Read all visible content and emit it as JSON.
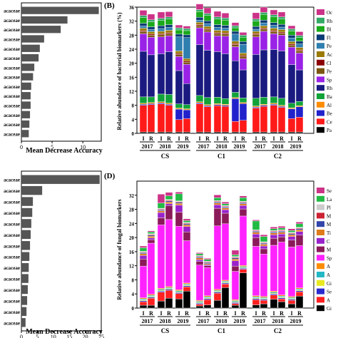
{
  "panel_letters": [
    "(B)",
    "(D)"
  ],
  "chart_data": [
    {
      "type": "bar",
      "orientation": "horizontal",
      "xlabel": "Mean Decrease Accuracy",
      "xlim": [
        0,
        13
      ],
      "xticks": [
        "0",
        "5",
        "10"
      ],
      "categories": [
        "acaceae",
        "acaceae",
        "acaceae",
        "acaceae",
        "acaceae",
        "acaceae",
        "acaceae",
        "acaceae",
        "acaceae",
        "acaceae",
        "acaceae",
        "acaceae",
        "acaceae",
        "acaceae"
      ],
      "values": [
        12.6,
        7.5,
        6.4,
        3.7,
        3.0,
        2.8,
        2.1,
        1.9,
        1.6,
        1.5,
        1.5,
        1.4,
        1.3,
        1.2
      ]
    },
    {
      "type": "bar",
      "orientation": "horizontal",
      "xlabel": "Mean Decrease Accuracy",
      "xlim": [
        0,
        25
      ],
      "xticks": [
        "0",
        "5",
        "10",
        "15",
        "20",
        "25"
      ],
      "categories": [
        "acaceae",
        "acaceae",
        "acaceae",
        "acaceae",
        "acaceae",
        "acaceae",
        "acaceae",
        "acaceae",
        "acaceae",
        "acaceae",
        "acaceae",
        "acaceae",
        "acaceae",
        "acaceae"
      ],
      "values": [
        24.5,
        6.5,
        3.6,
        3.4,
        3.1,
        2.9,
        2.7,
        2.5,
        2.3,
        2.2,
        2.0,
        1.8,
        1.6,
        1.3
      ]
    },
    {
      "type": "stacked-bar",
      "panel": "(B)",
      "ylabel": "Relative abundance of bacterial biomarkers (%)",
      "ylim": [
        0,
        36
      ],
      "yticks": [
        "0",
        "4",
        "8",
        "12",
        "16",
        "20",
        "24",
        "28",
        "32",
        "36"
      ],
      "categories": [
        "I",
        "R",
        "I",
        "R",
        "I",
        "R",
        "I",
        "R",
        "I",
        "R",
        "I",
        "R",
        "I",
        "R",
        "I",
        "R",
        "I",
        "R"
      ],
      "years": [
        "2017",
        "2018",
        "2019",
        "2017",
        "2018",
        "2019",
        "2017",
        "2018",
        "2019"
      ],
      "groups": [
        "CS",
        "C1",
        "C2"
      ],
      "legend": [
        "Oc",
        "Rh",
        "Bl",
        "Fl",
        "Pe",
        "Ac",
        "Cl",
        "Pe",
        "Sp",
        "Rh",
        "Ba",
        "Al",
        "Be",
        "Ce",
        "Pa"
      ],
      "colors": [
        "#000000",
        "#ff1a1a",
        "#2222cc",
        "#ff8c00",
        "#11a33a",
        "#1a1a80",
        "#9a22e6",
        "#7a5510",
        "#8b0000",
        "#9b7a00",
        "#2f7fb0",
        "#0b3b75",
        "#1aaa1a",
        "#33aa66",
        "#cc3388"
      ],
      "series": [
        {
          "values": [
            0.4,
            0.4,
            0.4,
            0.4,
            0.4,
            0.4,
            0.4,
            0.4,
            0.4,
            0.4,
            0.4,
            0.4,
            0.4,
            0.4,
            0.4,
            0.4,
            0.4,
            0.4
          ]
        },
        {
          "values": [
            7.6,
            7.8,
            8.0,
            7.6,
            3.5,
            3.8,
            8.0,
            7.2,
            7.5,
            7.3,
            3.0,
            3.3,
            6.8,
            7.3,
            7.6,
            7.0,
            3.8,
            4.2
          ]
        },
        {
          "values": [
            0.3,
            0.3,
            0.3,
            0.3,
            3.0,
            2.5,
            0.3,
            0.3,
            0.3,
            0.3,
            6.5,
            4.8,
            0.3,
            0.3,
            0.3,
            0.3,
            2.8,
            3.0
          ]
        },
        {
          "values": [
            0.3,
            0.3,
            0.3,
            0.3,
            0.3,
            0.3,
            0.3,
            0.3,
            0.3,
            0.3,
            0.3,
            0.3,
            0.3,
            0.3,
            0.3,
            0.3,
            0.3,
            0.3
          ]
        },
        {
          "values": [
            1.8,
            1.6,
            2.2,
            2.5,
            1.2,
            1.2,
            1.8,
            2.0,
            1.8,
            1.6,
            1.5,
            1.3,
            2.2,
            2.0,
            1.8,
            2.0,
            1.3,
            1.2
          ]
        },
        {
          "values": [
            13.0,
            12.0,
            11.5,
            12.2,
            9.5,
            6.0,
            14.5,
            13.5,
            13.0,
            12.8,
            9.0,
            8.0,
            12.5,
            13.5,
            13.5,
            13.5,
            11.0,
            9.0
          ]
        },
        {
          "values": [
            5.0,
            5.0,
            4.8,
            4.5,
            4.0,
            5.5,
            4.8,
            5.2,
            4.5,
            5.0,
            4.0,
            3.2,
            5.0,
            5.3,
            4.5,
            4.5,
            5.0,
            4.8
          ]
        },
        {
          "values": [
            0.6,
            0.6,
            0.6,
            0.6,
            0.6,
            0.6,
            0.6,
            0.6,
            0.6,
            0.6,
            0.6,
            0.6,
            0.6,
            0.6,
            0.6,
            0.6,
            0.6,
            0.6
          ]
        },
        {
          "values": [
            0.3,
            0.3,
            0.3,
            0.3,
            0.3,
            0.3,
            0.3,
            0.3,
            0.3,
            0.3,
            0.3,
            0.3,
            0.3,
            0.3,
            0.3,
            0.3,
            0.3,
            0.3
          ]
        },
        {
          "values": [
            0.7,
            0.7,
            0.7,
            0.7,
            0.7,
            0.7,
            0.7,
            0.7,
            0.7,
            0.7,
            0.7,
            0.7,
            0.7,
            0.7,
            0.7,
            0.7,
            0.7,
            0.7
          ]
        },
        {
          "values": [
            0.6,
            0.6,
            0.8,
            0.8,
            4.0,
            6.0,
            0.6,
            0.8,
            0.8,
            0.7,
            2.0,
            2.5,
            0.6,
            0.8,
            0.8,
            0.7,
            1.0,
            1.0
          ]
        },
        {
          "values": [
            0.8,
            0.8,
            0.8,
            0.8,
            0.8,
            0.8,
            0.8,
            0.8,
            0.8,
            0.8,
            0.8,
            0.8,
            0.8,
            0.8,
            0.8,
            0.8,
            0.8,
            0.8
          ]
        },
        {
          "values": [
            1.6,
            1.4,
            1.5,
            1.6,
            1.2,
            1.2,
            1.6,
            1.5,
            1.6,
            1.5,
            1.0,
            1.2,
            1.5,
            1.6,
            1.6,
            1.5,
            1.2,
            1.0
          ]
        },
        {
          "values": [
            0.6,
            0.6,
            0.6,
            0.6,
            0.6,
            0.6,
            0.6,
            0.6,
            0.6,
            0.6,
            0.6,
            0.6,
            0.6,
            0.6,
            0.6,
            0.6,
            0.6,
            0.6
          ]
        },
        {
          "values": [
            1.5,
            1.6,
            1.8,
            1.5,
            0.8,
            0.7,
            1.6,
            1.6,
            1.6,
            1.4,
            0.9,
            0.8,
            1.8,
            1.5,
            1.4,
            1.4,
            0.9,
            1.1
          ]
        }
      ]
    },
    {
      "type": "stacked-bar",
      "panel": "(D)",
      "ylabel": "Relative abundance of fungal biomarkers",
      "ylim": [
        0,
        36
      ],
      "yticks": [
        "0",
        "4",
        "8",
        "12",
        "16",
        "20",
        "24",
        "28",
        "32"
      ],
      "categories": [
        "I",
        "R",
        "I",
        "R",
        "I",
        "R",
        "I",
        "R",
        "I",
        "R",
        "I",
        "R",
        "I",
        "R",
        "I",
        "R",
        "I",
        "R"
      ],
      "years": [
        "2017",
        "2018",
        "2019",
        "2017",
        "2018",
        "2019",
        "2017",
        "2018",
        "2019"
      ],
      "groups": [
        "CS",
        "C1",
        "C2"
      ],
      "legend": [
        "Se",
        "La",
        "Pl",
        "M",
        "M",
        "Ti",
        "C",
        "M",
        "Sp",
        "A",
        "A",
        "Gi",
        "Se",
        "A",
        "Gi"
      ],
      "colors": [
        "#000000",
        "#ff2020",
        "#2a2ad0",
        "#e8e820",
        "#23b8c4",
        "#ff8c00",
        "#ff22ff",
        "#8b1a5a",
        "#9922cc",
        "#e07b1a",
        "#3344aa",
        "#cc2233",
        "#cccccc",
        "#22bb44",
        "#cc3388"
      ],
      "series": [
        {
          "values": [
            0.8,
            0.8,
            2.0,
            2.8,
            2.6,
            4.8,
            0.6,
            0.9,
            2.2,
            5.8,
            0.8,
            10.0,
            0.9,
            1.2,
            2.5,
            1.8,
            1.2,
            3.4
          ]
        },
        {
          "values": [
            1.0,
            2.0,
            2.5,
            2.2,
            1.5,
            1.2,
            0.5,
            1.5,
            2.0,
            1.0,
            0.5,
            1.0,
            1.5,
            1.0,
            1.2,
            0.8,
            1.0,
            1.2
          ]
        },
        {
          "values": [
            0.3,
            0.3,
            0.3,
            0.3,
            0.3,
            0.3,
            0.3,
            0.3,
            0.3,
            0.3,
            0.3,
            0.3,
            0.3,
            0.3,
            0.3,
            0.3,
            0.3,
            0.3
          ]
        },
        {
          "values": [
            0.2,
            0.2,
            0.2,
            0.2,
            0.2,
            0.2,
            0.2,
            0.2,
            0.2,
            0.2,
            0.2,
            0.2,
            0.2,
            0.2,
            0.2,
            0.2,
            0.2,
            0.2
          ]
        },
        {
          "values": [
            0.3,
            0.3,
            0.3,
            0.3,
            0.3,
            0.3,
            0.3,
            0.3,
            0.3,
            0.3,
            0.3,
            0.3,
            0.3,
            0.3,
            0.3,
            0.3,
            0.3,
            0.3
          ]
        },
        {
          "values": [
            0.3,
            0.3,
            0.3,
            0.3,
            0.3,
            0.3,
            0.3,
            0.3,
            0.3,
            0.3,
            0.3,
            0.3,
            0.3,
            0.3,
            0.3,
            0.3,
            0.3,
            0.3
          ]
        },
        {
          "values": [
            9.0,
            14.5,
            18.0,
            19.0,
            18.0,
            12.0,
            10.0,
            8.0,
            18.0,
            16.0,
            8.0,
            14.0,
            14.0,
            12.0,
            13.0,
            15.0,
            14.0,
            12.0
          ]
        },
        {
          "values": [
            2.0,
            1.0,
            2.0,
            4.0,
            4.0,
            2.5,
            1.0,
            0.5,
            5.0,
            3.0,
            1.5,
            2.0,
            2.5,
            1.5,
            2.0,
            1.5,
            2.0,
            3.0
          ]
        },
        {
          "values": [
            1.0,
            0.5,
            1.5,
            0.5,
            2.0,
            1.5,
            0.5,
            0.3,
            1.0,
            1.0,
            1.5,
            1.0,
            1.0,
            0.8,
            1.0,
            0.8,
            1.0,
            1.0
          ]
        },
        {
          "values": [
            0.5,
            0.5,
            0.5,
            0.5,
            0.5,
            0.5,
            0.5,
            0.3,
            0.5,
            0.5,
            0.5,
            0.5,
            0.5,
            0.5,
            0.5,
            0.5,
            0.5,
            0.5
          ]
        },
        {
          "values": [
            0.3,
            0.3,
            0.3,
            0.3,
            0.3,
            0.3,
            0.3,
            0.3,
            0.3,
            0.3,
            0.3,
            0.3,
            0.3,
            0.3,
            0.3,
            0.3,
            0.3,
            0.3
          ]
        },
        {
          "values": [
            0.2,
            0.2,
            0.2,
            0.2,
            0.2,
            0.2,
            0.2,
            0.2,
            0.2,
            0.2,
            0.2,
            0.2,
            0.2,
            0.2,
            0.2,
            0.2,
            0.2,
            0.2
          ]
        },
        {
          "values": [
            0.2,
            0.2,
            0.2,
            0.2,
            0.2,
            0.2,
            0.2,
            0.2,
            0.2,
            0.2,
            0.2,
            0.2,
            0.2,
            0.2,
            0.2,
            0.2,
            0.2,
            0.2
          ]
        },
        {
          "values": [
            1.0,
            0.5,
            1.5,
            1.0,
            2.0,
            0.5,
            0.5,
            0.5,
            0.8,
            0.5,
            0.5,
            1.0,
            2.5,
            1.5,
            0.5,
            0.5,
            0.5,
            1.0
          ]
        },
        {
          "values": [
            0.5,
            0.3,
            2.5,
            1.0,
            0.5,
            0.5,
            0.3,
            0.3,
            0.8,
            0.5,
            1.3,
            0.5,
            0.3,
            0.5,
            0.5,
            0.5,
            0.5,
            0.5
          ]
        }
      ]
    }
  ]
}
